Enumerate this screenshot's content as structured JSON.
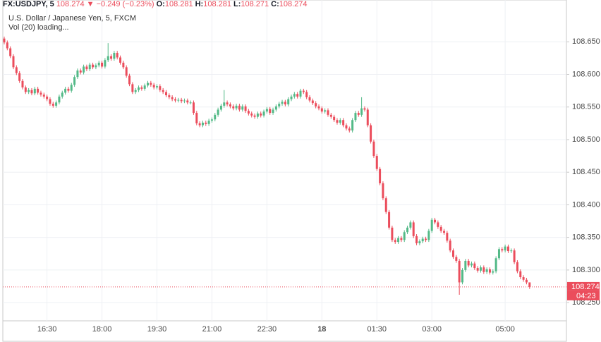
{
  "header": {
    "symbol": "FX:USDJPY, 5",
    "price": "108.274",
    "arrow": "▼",
    "change": "−0.249 (−0.23%)",
    "stats": [
      {
        "label": "O:",
        "value": "108.281"
      },
      {
        "label": "H:",
        "value": "108.281"
      },
      {
        "label": "L:",
        "value": "108.271"
      },
      {
        "label": "C:",
        "value": "108.274"
      }
    ],
    "subtitle": "U.S. Dollar / Japanese Yen, 5, FXCM",
    "volume": "Vol (20) loading...",
    "countdown": "04:23"
  },
  "chart_data": {
    "type": "candlestick",
    "up_color": "#53b987",
    "down_color": "#eb4d5c",
    "grid": true,
    "ylim": [
      108.222,
      108.699
    ],
    "yticks": [
      {
        "value": 108.25,
        "label": "108.250"
      },
      {
        "value": 108.3,
        "label": "108.300"
      },
      {
        "value": 108.35,
        "label": "108.350"
      },
      {
        "value": 108.4,
        "label": "108.400"
      },
      {
        "value": 108.45,
        "label": "108.450"
      },
      {
        "value": 108.5,
        "label": "108.500"
      },
      {
        "value": 108.55,
        "label": "108.550"
      },
      {
        "value": 108.6,
        "label": "108.600"
      },
      {
        "value": 108.65,
        "label": "108.650"
      }
    ],
    "categories": [
      null,
      null,
      null,
      null,
      null,
      null,
      null,
      null,
      null,
      null,
      null,
      null,
      null,
      null,
      "16:30",
      null,
      null,
      null,
      null,
      null,
      null,
      null,
      null,
      null,
      null,
      null,
      null,
      null,
      null,
      null,
      null,
      null,
      "18:00",
      null,
      null,
      null,
      null,
      null,
      null,
      null,
      null,
      null,
      null,
      null,
      null,
      null,
      null,
      null,
      null,
      null,
      "19:30",
      null,
      null,
      null,
      null,
      null,
      null,
      null,
      null,
      null,
      null,
      null,
      null,
      null,
      null,
      null,
      null,
      null,
      "21:00",
      null,
      null,
      null,
      null,
      null,
      null,
      null,
      null,
      null,
      null,
      null,
      null,
      null,
      null,
      null,
      null,
      null,
      "22:30",
      null,
      null,
      null,
      null,
      null,
      null,
      null,
      null,
      null,
      null,
      null,
      null,
      null,
      null,
      null,
      null,
      null,
      "18",
      null,
      null,
      null,
      null,
      null,
      null,
      null,
      null,
      null,
      null,
      null,
      null,
      null,
      null,
      null,
      null,
      null,
      "01:30",
      null,
      null,
      null,
      null,
      null,
      null,
      null,
      null,
      null,
      null,
      null,
      null,
      null,
      null,
      null,
      null,
      null,
      "03:00",
      null,
      null,
      null,
      null,
      null,
      null,
      null,
      null,
      null,
      null,
      null,
      null,
      null,
      null,
      null,
      null,
      null,
      null,
      null,
      null,
      null,
      null,
      null,
      "05:00",
      null,
      null,
      null,
      null,
      null,
      null,
      null,
      null
    ],
    "ohlc": [
      [
        108.655,
        108.658,
        108.646,
        108.649
      ],
      [
        108.649,
        108.652,
        108.637,
        108.64
      ],
      [
        108.64,
        108.643,
        108.625,
        108.628
      ],
      [
        108.628,
        108.631,
        108.608,
        108.611
      ],
      [
        108.611,
        108.614,
        108.599,
        108.602
      ],
      [
        108.602,
        108.605,
        108.587,
        108.59
      ],
      [
        108.59,
        108.593,
        108.577,
        108.58
      ],
      [
        108.58,
        108.583,
        108.57,
        108.573
      ],
      [
        108.573,
        108.579,
        108.57,
        108.576
      ],
      [
        108.576,
        108.579,
        108.568,
        108.571
      ],
      [
        108.571,
        108.581,
        108.568,
        108.578
      ],
      [
        108.578,
        108.581,
        108.569,
        108.572
      ],
      [
        108.572,
        108.575,
        108.566,
        108.569
      ],
      [
        108.569,
        108.572,
        108.563,
        108.566
      ],
      [
        108.566,
        108.569,
        108.559,
        108.562
      ],
      [
        108.562,
        108.565,
        108.552,
        108.555
      ],
      [
        108.555,
        108.558,
        108.549,
        108.552
      ],
      [
        108.552,
        108.56,
        108.549,
        108.557
      ],
      [
        108.557,
        108.569,
        108.554,
        108.566
      ],
      [
        108.566,
        108.575,
        108.563,
        108.572
      ],
      [
        108.572,
        108.581,
        108.569,
        108.578
      ],
      [
        108.578,
        108.581,
        108.572,
        108.575
      ],
      [
        108.575,
        108.587,
        108.572,
        108.584
      ],
      [
        108.584,
        108.599,
        108.581,
        108.596
      ],
      [
        108.596,
        108.609,
        108.593,
        108.606
      ],
      [
        108.606,
        108.609,
        108.6,
        108.603
      ],
      [
        108.603,
        108.615,
        108.6,
        108.612
      ],
      [
        108.612,
        108.615,
        108.605,
        108.608
      ],
      [
        108.608,
        108.618,
        108.605,
        108.615
      ],
      [
        108.615,
        108.618,
        108.608,
        108.611
      ],
      [
        108.611,
        108.617,
        108.608,
        108.614
      ],
      [
        108.614,
        108.621,
        108.611,
        108.618
      ],
      [
        108.618,
        108.621,
        108.609,
        108.612
      ],
      [
        108.612,
        108.625,
        108.609,
        108.622
      ],
      [
        108.622,
        108.648,
        108.619,
        108.628
      ],
      [
        108.628,
        108.631,
        108.621,
        108.624
      ],
      [
        108.624,
        108.636,
        108.621,
        108.633
      ],
      [
        108.633,
        108.636,
        108.623,
        108.626
      ],
      [
        108.626,
        108.629,
        108.615,
        108.618
      ],
      [
        108.618,
        108.621,
        108.608,
        108.611
      ],
      [
        108.611,
        108.614,
        108.595,
        108.598
      ],
      [
        108.598,
        108.601,
        108.582,
        108.585
      ],
      [
        108.585,
        108.588,
        108.57,
        108.573
      ],
      [
        108.573,
        108.579,
        108.57,
        108.576
      ],
      [
        108.576,
        108.583,
        108.573,
        108.58
      ],
      [
        108.58,
        108.583,
        108.575,
        108.578
      ],
      [
        108.578,
        108.586,
        108.575,
        108.583
      ],
      [
        108.583,
        108.59,
        108.58,
        108.587
      ],
      [
        108.587,
        108.59,
        108.581,
        108.584
      ],
      [
        108.584,
        108.587,
        108.577,
        108.58
      ],
      [
        108.58,
        108.585,
        108.577,
        108.582
      ],
      [
        108.582,
        108.585,
        108.573,
        108.576
      ],
      [
        108.576,
        108.579,
        108.57,
        108.573
      ],
      [
        108.573,
        108.576,
        108.565,
        108.568
      ],
      [
        108.568,
        108.571,
        108.562,
        108.565
      ],
      [
        108.565,
        108.568,
        108.559,
        108.562
      ],
      [
        108.562,
        108.565,
        108.557,
        108.56
      ],
      [
        108.56,
        108.564,
        108.557,
        108.561
      ],
      [
        108.561,
        108.564,
        108.556,
        108.559
      ],
      [
        108.559,
        108.563,
        108.556,
        108.56
      ],
      [
        108.56,
        108.563,
        108.554,
        108.557
      ],
      [
        108.557,
        108.56,
        108.554,
        108.557
      ],
      [
        108.557,
        108.56,
        108.538,
        108.541
      ],
      [
        108.541,
        108.544,
        108.522,
        108.525
      ],
      [
        108.525,
        108.528,
        108.519,
        108.522
      ],
      [
        108.522,
        108.529,
        108.519,
        108.526
      ],
      [
        108.526,
        108.529,
        108.521,
        108.524
      ],
      [
        108.524,
        108.532,
        108.521,
        108.529
      ],
      [
        108.529,
        108.534,
        108.526,
        108.531
      ],
      [
        108.531,
        108.541,
        108.528,
        108.538
      ],
      [
        108.538,
        108.549,
        108.535,
        108.546
      ],
      [
        108.546,
        108.555,
        108.543,
        108.552
      ],
      [
        108.552,
        108.576,
        108.549,
        108.557
      ],
      [
        108.557,
        108.56,
        108.551,
        108.554
      ],
      [
        108.554,
        108.557,
        108.548,
        108.551
      ],
      [
        108.551,
        108.554,
        108.545,
        108.548
      ],
      [
        108.548,
        108.555,
        108.545,
        108.552
      ],
      [
        108.552,
        108.555,
        108.543,
        108.546
      ],
      [
        108.546,
        108.554,
        108.543,
        108.551
      ],
      [
        108.551,
        108.554,
        108.541,
        108.544
      ],
      [
        108.544,
        108.547,
        108.537,
        108.54
      ],
      [
        108.54,
        108.543,
        108.534,
        108.537
      ],
      [
        108.537,
        108.54,
        108.532,
        108.535
      ],
      [
        108.535,
        108.543,
        108.532,
        108.54
      ],
      [
        108.54,
        108.543,
        108.534,
        108.537
      ],
      [
        108.537,
        108.546,
        108.534,
        108.543
      ],
      [
        108.543,
        108.55,
        108.54,
        108.547
      ],
      [
        108.547,
        108.55,
        108.538,
        108.541
      ],
      [
        108.541,
        108.549,
        108.538,
        108.546
      ],
      [
        108.546,
        108.554,
        108.543,
        108.551
      ],
      [
        108.551,
        108.558,
        108.548,
        108.555
      ],
      [
        108.555,
        108.561,
        108.552,
        108.558
      ],
      [
        108.558,
        108.561,
        108.551,
        108.554
      ],
      [
        108.554,
        108.565,
        108.551,
        108.562
      ],
      [
        108.562,
        108.569,
        108.559,
        108.566
      ],
      [
        108.566,
        108.573,
        108.563,
        108.57
      ],
      [
        108.57,
        108.573,
        108.563,
        108.566
      ],
      [
        108.566,
        108.578,
        108.563,
        108.575
      ],
      [
        108.575,
        108.578,
        108.57,
        108.573
      ],
      [
        108.573,
        108.576,
        108.562,
        108.565
      ],
      [
        108.565,
        108.568,
        108.557,
        108.56
      ],
      [
        108.56,
        108.563,
        108.553,
        108.556
      ],
      [
        108.556,
        108.559,
        108.548,
        108.551
      ],
      [
        108.551,
        108.554,
        108.545,
        108.548
      ],
      [
        108.548,
        108.551,
        108.54,
        108.543
      ],
      [
        108.543,
        108.548,
        108.54,
        108.545
      ],
      [
        108.545,
        108.548,
        108.535,
        108.538
      ],
      [
        108.538,
        108.541,
        108.532,
        108.535
      ],
      [
        108.535,
        108.538,
        108.527,
        108.53
      ],
      [
        108.53,
        108.533,
        108.523,
        108.526
      ],
      [
        108.526,
        108.533,
        108.523,
        108.53
      ],
      [
        108.53,
        108.533,
        108.519,
        108.522
      ],
      [
        108.522,
        108.525,
        108.514,
        108.517
      ],
      [
        108.517,
        108.52,
        108.511,
        108.514
      ],
      [
        108.514,
        108.533,
        108.511,
        108.53
      ],
      [
        108.53,
        108.544,
        108.527,
        108.541
      ],
      [
        108.541,
        108.544,
        108.535,
        108.538
      ],
      [
        108.538,
        108.565,
        108.535,
        108.548
      ],
      [
        108.548,
        108.551,
        108.543,
        108.546
      ],
      [
        108.546,
        108.549,
        108.519,
        108.522
      ],
      [
        108.522,
        108.525,
        108.494,
        108.497
      ],
      [
        108.497,
        108.5,
        108.472,
        108.475
      ],
      [
        108.475,
        108.478,
        108.452,
        108.455
      ],
      [
        108.455,
        108.458,
        108.43,
        108.433
      ],
      [
        108.433,
        108.436,
        108.407,
        108.41
      ],
      [
        108.41,
        108.413,
        108.386,
        108.389
      ],
      [
        108.389,
        108.392,
        108.362,
        108.365
      ],
      [
        108.365,
        108.368,
        108.343,
        108.346
      ],
      [
        108.346,
        108.349,
        108.34,
        108.343
      ],
      [
        108.343,
        108.352,
        108.34,
        108.349
      ],
      [
        108.349,
        108.352,
        108.343,
        108.346
      ],
      [
        108.346,
        108.361,
        108.343,
        108.358
      ],
      [
        108.358,
        108.368,
        108.355,
        108.365
      ],
      [
        108.365,
        108.376,
        108.362,
        108.373
      ],
      [
        108.373,
        108.376,
        108.349,
        108.352
      ],
      [
        108.352,
        108.355,
        108.338,
        108.341
      ],
      [
        108.341,
        108.347,
        108.338,
        108.344
      ],
      [
        108.344,
        108.351,
        108.341,
        108.348
      ],
      [
        108.348,
        108.351,
        108.343,
        108.346
      ],
      [
        108.346,
        108.363,
        108.343,
        108.36
      ],
      [
        108.36,
        108.38,
        108.357,
        108.377
      ],
      [
        108.377,
        108.38,
        108.37,
        108.373
      ],
      [
        108.373,
        108.376,
        108.363,
        108.366
      ],
      [
        108.366,
        108.369,
        108.357,
        108.36
      ],
      [
        108.36,
        108.363,
        108.354,
        108.357
      ],
      [
        108.357,
        108.36,
        108.342,
        108.345
      ],
      [
        108.345,
        108.348,
        108.327,
        108.33
      ],
      [
        108.33,
        108.333,
        108.317,
        108.32
      ],
      [
        108.32,
        108.323,
        108.311,
        108.314
      ],
      [
        108.314,
        108.317,
        108.262,
        108.281
      ],
      [
        108.281,
        108.303,
        108.278,
        108.3
      ],
      [
        108.3,
        108.317,
        108.297,
        108.314
      ],
      [
        108.314,
        108.317,
        108.304,
        108.307
      ],
      [
        108.307,
        108.313,
        108.304,
        108.31
      ],
      [
        108.31,
        108.313,
        108.3,
        108.303
      ],
      [
        108.303,
        108.306,
        108.296,
        108.299
      ],
      [
        108.299,
        108.307,
        108.296,
        108.304
      ],
      [
        108.304,
        108.307,
        108.294,
        108.297
      ],
      [
        108.297,
        108.304,
        108.294,
        108.301
      ],
      [
        108.301,
        108.304,
        108.293,
        108.296
      ],
      [
        108.296,
        108.301,
        108.293,
        108.298
      ],
      [
        108.298,
        108.321,
        108.295,
        108.318
      ],
      [
        108.318,
        108.335,
        108.315,
        108.332
      ],
      [
        108.332,
        108.335,
        108.327,
        108.33
      ],
      [
        108.33,
        108.339,
        108.327,
        108.336
      ],
      [
        108.336,
        108.339,
        108.326,
        108.329
      ],
      [
        108.329,
        108.333,
        108.326,
        108.33
      ],
      [
        108.33,
        108.333,
        108.309,
        108.312
      ],
      [
        108.312,
        108.315,
        108.295,
        108.298
      ],
      [
        108.298,
        108.301,
        108.286,
        108.289
      ],
      [
        108.289,
        108.292,
        108.282,
        108.285
      ],
      [
        108.285,
        108.288,
        108.278,
        108.281
      ],
      [
        108.281,
        108.281,
        108.271,
        108.274
      ]
    ]
  }
}
